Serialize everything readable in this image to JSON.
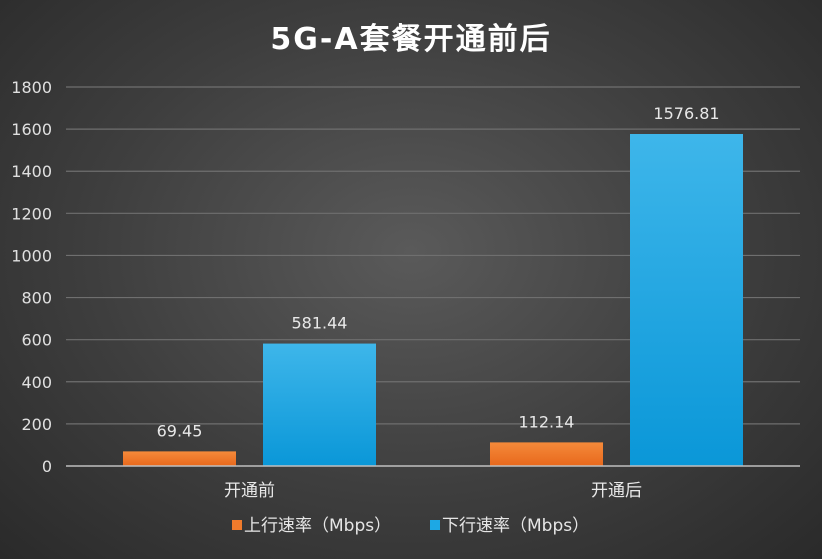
{
  "chart_data": {
    "type": "bar",
    "title": "5G-A套餐开通前后",
    "categories": [
      "开通前",
      "开通后"
    ],
    "series": [
      {
        "name": "上行速率（Mbps）",
        "values": [
          69.45,
          112.14
        ],
        "color": "#f07b2c"
      },
      {
        "name": "下行速率（Mbps）",
        "values": [
          581.44,
          1576.81
        ],
        "color": "#1da8e4"
      }
    ],
    "ylim": [
      0,
      1800
    ],
    "yticks": [
      0,
      200,
      400,
      600,
      800,
      1000,
      1200,
      1400,
      1600,
      1800
    ],
    "grid": true,
    "legend_position": "bottom"
  }
}
